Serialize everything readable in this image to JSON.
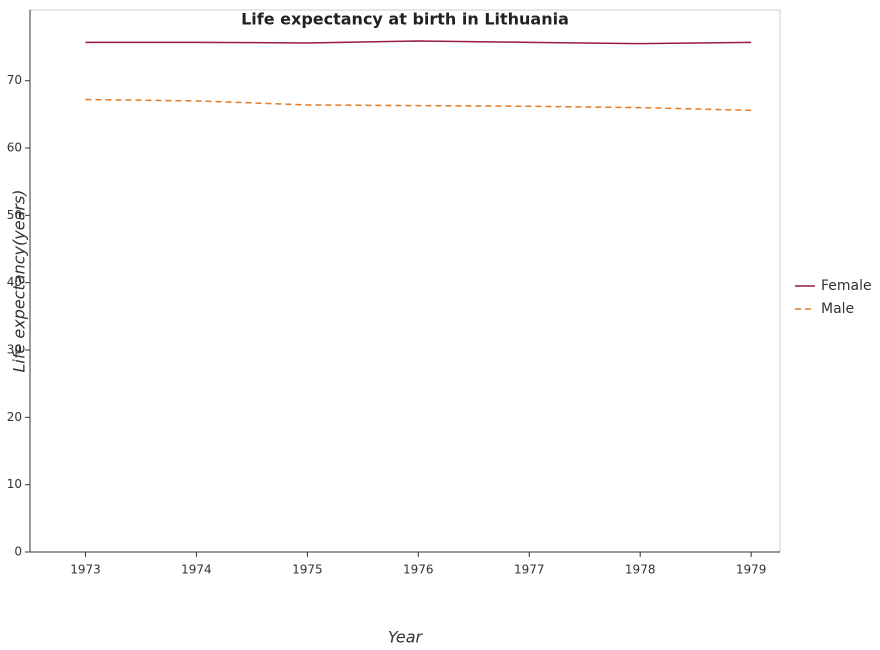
{
  "chart_data": {
    "type": "line",
    "title": "Life expectancy at birth in Lithuania",
    "x_label": "Year",
    "y_label": "Life expectancy(years)",
    "x": [
      1973,
      1974,
      1975,
      1976,
      1977,
      1978,
      1979
    ],
    "series": [
      {
        "name": "Female",
        "color": "#99174d",
        "dash": "solid",
        "values": [
          75.7,
          75.7,
          75.6,
          75.9,
          75.7,
          75.5,
          75.7
        ]
      },
      {
        "name": "Male",
        "color": "#e07b26",
        "dash": "dashed",
        "values": [
          67.2,
          67.0,
          66.4,
          66.3,
          66.2,
          66.0,
          65.6
        ]
      }
    ],
    "xlim": [
      1972.5,
      1979.26
    ],
    "xticks": [
      1973,
      1974,
      1975,
      1976,
      1977,
      1978,
      1979
    ],
    "ylim": [
      0,
      80.5
    ],
    "yticks": [
      0,
      10,
      20,
      30,
      40,
      50,
      60,
      70
    ],
    "legend": "right"
  }
}
